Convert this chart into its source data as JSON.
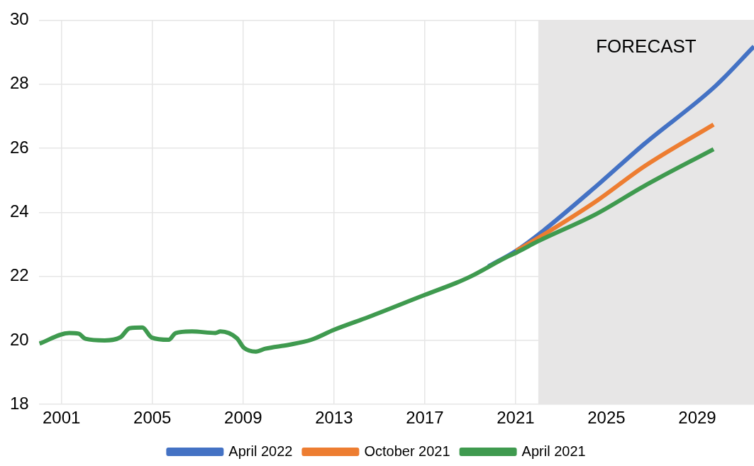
{
  "chart_data": {
    "type": "line",
    "xlim": [
      2000,
      2031.5
    ],
    "xticks": [
      2001,
      2005,
      2009,
      2013,
      2017,
      2021,
      2025,
      2029
    ],
    "ylim": [
      18,
      30
    ],
    "yticks": [
      18,
      20,
      22,
      24,
      26,
      28,
      30
    ],
    "grid": true,
    "legend": "bottom",
    "marker": "none",
    "line_style": "solid",
    "bands": [
      {
        "axis": "x",
        "from": 2022,
        "to": 2031.5,
        "label": "FORECAST",
        "color": "#e7e6e6"
      }
    ],
    "series": [
      {
        "name": "April 2022",
        "color": "#4472c4",
        "x": [
          2019.8,
          2021.03,
          2022,
          2024.56,
          2026.66,
          2029.8,
          2031.5
        ],
        "values": [
          22.31,
          22.8,
          23.3,
          24.82,
          26.13,
          27.94,
          29.18
        ]
      },
      {
        "name": "October 2021",
        "color": "#ed7d31",
        "x": [
          2021.03,
          2022,
          2024.56,
          2026.66,
          2029.72
        ],
        "values": [
          22.8,
          23.2,
          24.35,
          25.43,
          26.74
        ]
      },
      {
        "name": "April 2021",
        "color": "#3f9a4f",
        "x": [
          2000.03,
          2001.34,
          2001.75,
          2002.06,
          2002.9,
          2003.6,
          2004.0,
          2004.56,
          2004.97,
          2005.72,
          2006.03,
          2006.75,
          2007.78,
          2008.0,
          2008.72,
          2009.03,
          2009.56,
          2009.97,
          2011.0,
          2012.0,
          2013.0,
          2014.56,
          2017.0,
          2018.4,
          2019.03,
          2020.6,
          2021.03,
          2022,
          2024.56,
          2026.66,
          2029.72
        ],
        "values": [
          19.9,
          20.23,
          20.21,
          20.05,
          20.0,
          20.1,
          20.38,
          20.4,
          20.09,
          20.02,
          20.23,
          20.28,
          20.23,
          20.28,
          20.07,
          19.77,
          19.65,
          19.74,
          19.86,
          20.02,
          20.33,
          20.74,
          21.42,
          21.8,
          22.0,
          22.6,
          22.74,
          23.1,
          23.95,
          24.82,
          25.97
        ]
      }
    ]
  }
}
